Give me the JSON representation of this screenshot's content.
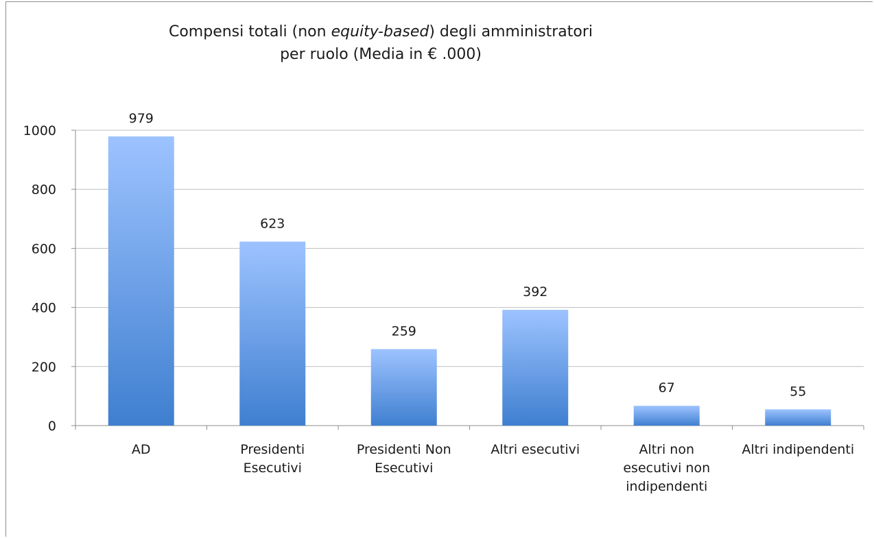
{
  "chart_data": {
    "type": "bar",
    "title": {
      "line1_pre": "Compensi totali (non ",
      "line1_em": "equity-based",
      "line1_post": ") degli amministratori",
      "line2": "per ruolo (Media in € .000)"
    },
    "categories": [
      [
        "AD"
      ],
      [
        "Presidenti",
        "Esecutivi"
      ],
      [
        "Presidenti Non",
        "Esecutivi"
      ],
      [
        "Altri esecutivi"
      ],
      [
        "Altri non",
        "esecutivi non",
        "indipendenti"
      ],
      [
        "Altri indipendenti"
      ]
    ],
    "values": [
      979,
      623,
      259,
      392,
      67,
      55
    ],
    "data_labels": [
      "979",
      "623",
      "259",
      "392",
      "67",
      "55"
    ],
    "ylim": [
      0,
      1000
    ],
    "yticks": [
      0,
      200,
      400,
      600,
      800,
      1000
    ],
    "grid": true,
    "legend": "none",
    "colors": {
      "bar_top": "#9dc3ff",
      "bar_bottom": "#3f7fd0",
      "grid": "#bfbfbf",
      "axis": "#8c8c8c"
    }
  }
}
